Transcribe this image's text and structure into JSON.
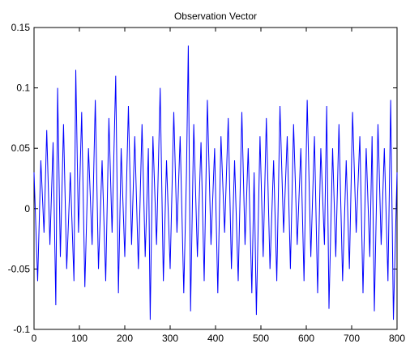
{
  "chart_data": {
    "type": "line",
    "title": "Observation Vector",
    "xlabel": "",
    "ylabel": "",
    "xlim": [
      0,
      800
    ],
    "ylim": [
      -0.1,
      0.15
    ],
    "xticks": [
      0,
      100,
      200,
      300,
      400,
      500,
      600,
      700,
      800
    ],
    "yticks": [
      -0.1,
      -0.05,
      0,
      0.05,
      0.1,
      0.15
    ],
    "xtick_labels": [
      "0",
      "100",
      "200",
      "300",
      "400",
      "500",
      "600",
      "700",
      "800"
    ],
    "ytick_labels": [
      "-0.1",
      "-0.05",
      "0",
      "0.05",
      "0.1",
      "0.15"
    ],
    "grid": false,
    "line_color": "#0000ff",
    "series": [
      {
        "x": [
          0,
          8,
          15,
          22,
          28,
          35,
          42,
          48,
          52,
          58,
          65,
          72,
          80,
          88,
          92,
          98,
          105,
          112,
          120,
          128,
          135,
          142,
          150,
          158,
          165,
          172,
          180,
          186,
          192,
          200,
          208,
          215,
          222,
          230,
          238,
          245,
          252,
          256,
          262,
          270,
          278,
          285,
          292,
          300,
          308,
          315,
          322,
          330,
          336,
          340,
          345,
          352,
          360,
          368,
          375,
          382,
          390,
          398,
          405,
          412,
          420,
          428,
          435,
          442,
          450,
          458,
          465,
          472,
          480,
          485,
          490,
          498,
          505,
          512,
          520,
          528,
          535,
          542,
          550,
          558,
          565,
          572,
          580,
          588,
          595,
          602,
          610,
          618,
          625,
          632,
          640,
          645,
          650,
          658,
          665,
          672,
          680,
          688,
          695,
          702,
          710,
          718,
          725,
          732,
          740,
          745,
          750,
          758,
          765,
          772,
          780,
          786,
          792,
          800
        ],
        "y": [
          0.03,
          -0.06,
          0.04,
          -0.02,
          0.065,
          -0.03,
          0.055,
          -0.08,
          0.1,
          -0.04,
          0.07,
          -0.05,
          0.03,
          -0.06,
          0.115,
          -0.02,
          0.08,
          -0.065,
          0.05,
          -0.03,
          0.09,
          -0.05,
          0.04,
          -0.06,
          0.075,
          -0.02,
          0.11,
          -0.07,
          0.05,
          -0.04,
          0.085,
          -0.03,
          0.06,
          -0.05,
          0.07,
          -0.04,
          0.05,
          -0.092,
          0.06,
          -0.03,
          0.1,
          -0.06,
          0.04,
          -0.05,
          0.08,
          -0.02,
          0.06,
          -0.07,
          0.03,
          0.135,
          -0.085,
          0.07,
          -0.04,
          0.055,
          -0.06,
          0.09,
          -0.03,
          0.05,
          -0.07,
          0.06,
          -0.02,
          0.075,
          -0.05,
          0.04,
          -0.06,
          0.08,
          -0.03,
          0.05,
          -0.07,
          0.03,
          -0.088,
          0.06,
          -0.04,
          0.075,
          -0.05,
          0.04,
          -0.06,
          0.085,
          -0.02,
          0.06,
          -0.05,
          0.07,
          -0.03,
          0.05,
          -0.06,
          0.09,
          -0.04,
          0.06,
          -0.07,
          0.05,
          -0.03,
          0.085,
          -0.083,
          0.05,
          -0.04,
          0.07,
          -0.06,
          0.04,
          -0.05,
          0.08,
          -0.02,
          0.06,
          -0.07,
          0.05,
          -0.04,
          0.06,
          -0.085,
          0.07,
          -0.03,
          0.05,
          -0.06,
          0.09,
          -0.092,
          0.03
        ]
      }
    ]
  }
}
